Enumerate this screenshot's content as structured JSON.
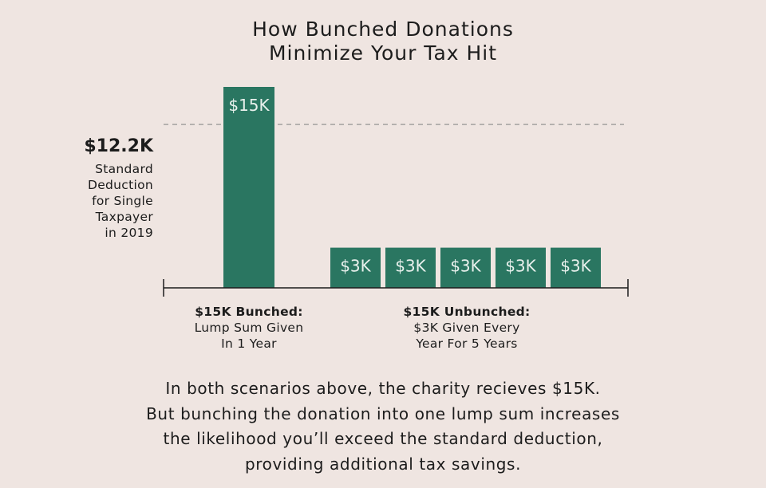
{
  "title_lines": [
    "How Bunched Donations",
    "Minimize Your Tax Hit"
  ],
  "reference": {
    "value_label": "$12.2K",
    "value": 12.2,
    "desc_lines": [
      "Standard",
      "Deduction",
      "for Single",
      "Taxpayer",
      "in 2019"
    ]
  },
  "chart_data": {
    "type": "bar",
    "title": "How Bunched Donations Minimize Your Tax Hit",
    "xlabel": "",
    "ylabel": "",
    "unit": "$K",
    "ylim": [
      0,
      15
    ],
    "grid": false,
    "bars": [
      {
        "group": 0,
        "value": 15,
        "label": "$15K"
      },
      {
        "group": 1,
        "value": 3,
        "label": "$3K"
      },
      {
        "group": 1,
        "value": 3,
        "label": "$3K"
      },
      {
        "group": 1,
        "value": 3,
        "label": "$3K"
      },
      {
        "group": 1,
        "value": 3,
        "label": "$3K"
      },
      {
        "group": 1,
        "value": 3,
        "label": "$3K"
      }
    ],
    "reference_line": {
      "value": 12.2,
      "label": "$12.2K",
      "style": "dashed"
    },
    "colors": {
      "bar": "#2a7661",
      "bar_label": "#e8f0ec",
      "axis": "#1c1c1c",
      "reference": "#8a8a8a"
    }
  },
  "groups": [
    {
      "title": "$15K Bunched:",
      "lines": [
        "Lump Sum Given",
        "In 1 Year"
      ]
    },
    {
      "title": "$15K Unbunched:",
      "lines": [
        "$3K Given Every",
        "Year For 5 Years"
      ]
    }
  ],
  "note_lines": [
    "In both scenarios above, the charity recieves $15K.",
    "But bunching the donation into one lump sum increases",
    "the likelihood you’ll exceed the standard deduction,",
    "providing additional tax savings."
  ]
}
